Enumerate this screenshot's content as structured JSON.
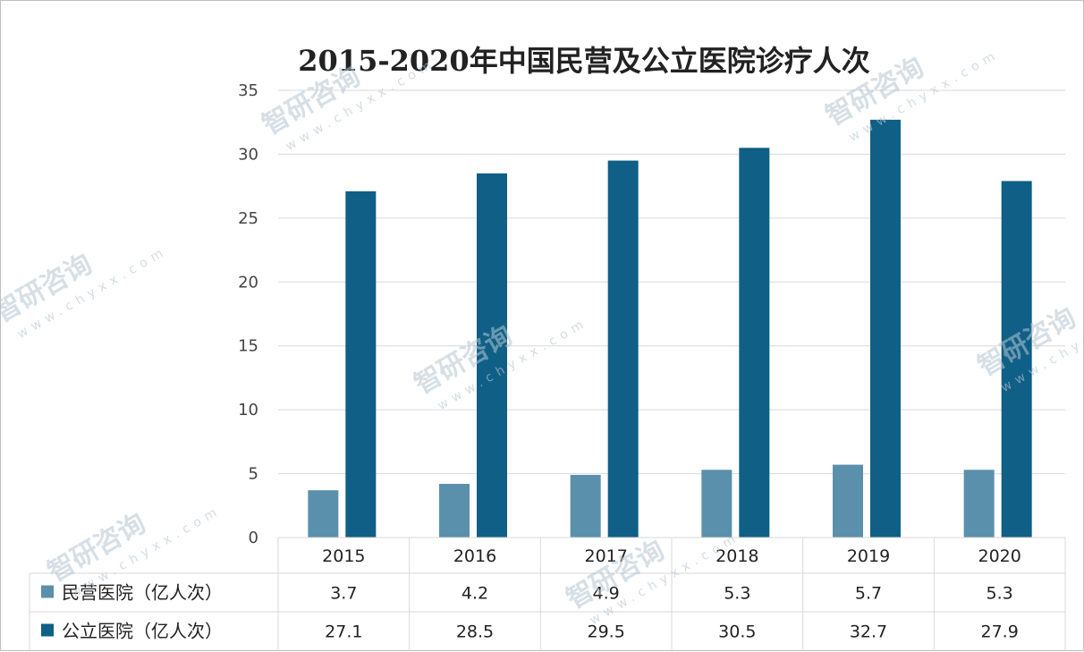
{
  "chart_data": {
    "type": "bar",
    "title": "2015-2020年中国民营及公立医院诊疗人次",
    "categories": [
      "2015",
      "2016",
      "2017",
      "2018",
      "2019",
      "2020"
    ],
    "series": [
      {
        "name": "民营医院（亿人次）",
        "values": [
          3.7,
          4.2,
          4.9,
          5.3,
          5.7,
          5.3
        ]
      },
      {
        "name": "公立医院（亿人次）",
        "values": [
          27.1,
          28.5,
          29.5,
          30.5,
          32.7,
          27.9
        ]
      }
    ],
    "ylim": [
      0,
      35
    ],
    "yticks": [
      0,
      5,
      10,
      15,
      20,
      25,
      30,
      35
    ],
    "xlabel": "",
    "ylabel": "",
    "grid": true,
    "data_table": true
  },
  "colors": {
    "series_1": "#5b90ad",
    "series_2": "#0f5f86",
    "grid": "#d9d9d9"
  },
  "watermark": {
    "brand": "智研咨询",
    "url": "www.chyxx.com"
  }
}
